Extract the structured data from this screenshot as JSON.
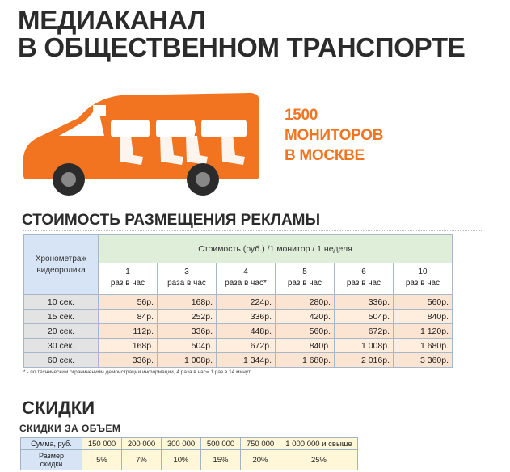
{
  "title_lines": [
    "МЕДИАКАНАЛ",
    "В ОБЩЕСТВЕННОМ ТРАНСПОРТЕ"
  ],
  "monitors_lines": [
    "1500",
    "МОНИТОРОВ",
    "В МОСКВЕ"
  ],
  "price_section": {
    "heading": "СТОИМОСТЬ РАЗМЕЩЕНИЯ РЕКЛАМЫ",
    "duration_header": "Хронометраж видеоролика",
    "cost_header": "Стоимость (руб.) /1 монитор / 1 неделя",
    "rates": [
      {
        "num": "1",
        "unit": "раз в час"
      },
      {
        "num": "3",
        "unit": "раза в час"
      },
      {
        "num": "4",
        "unit": "раза в час*"
      },
      {
        "num": "5",
        "unit": "раз в час"
      },
      {
        "num": "6",
        "unit": "раз в час"
      },
      {
        "num": "10",
        "unit": "раз в час"
      }
    ],
    "rows": [
      {
        "duration": "10 сек.",
        "prices": [
          "56р.",
          "168р.",
          "224р.",
          "280р.",
          "336р.",
          "560р."
        ]
      },
      {
        "duration": "15 сек.",
        "prices": [
          "84р.",
          "252р.",
          "336р.",
          "420р.",
          "504р.",
          "840р."
        ]
      },
      {
        "duration": "20 сек.",
        "prices": [
          "112р.",
          "336р.",
          "448р.",
          "560р.",
          "672р.",
          "1 120р."
        ]
      },
      {
        "duration": "30 сек.",
        "prices": [
          "168р.",
          "504р.",
          "672р.",
          "840р.",
          "1 008р.",
          "1 680р."
        ]
      },
      {
        "duration": "60 сек.",
        "prices": [
          "336р.",
          "1 008р.",
          "1 344р.",
          "1 680р.",
          "2 016р.",
          "3 360р."
        ]
      }
    ],
    "footnote": "* - по техническим ограничениям демонстрации информации, 4 раза в час= 1 раз в 14 минут"
  },
  "discount_section": {
    "heading": "СКИДКИ",
    "subheading": "СКИДКИ ЗА ОБЪЕМ",
    "sum_label": "Сумма, руб.",
    "size_label_line1": "Размер",
    "size_label_line2": "скидки",
    "sums": [
      "150 000",
      "200 000",
      "300 000",
      "500 000",
      "750 000",
      "1 000 000 и свыше"
    ],
    "discounts": [
      "5%",
      "7%",
      "10%",
      "15%",
      "20%",
      "25%"
    ]
  },
  "colors": {
    "accent": "#f27420",
    "header_blue": "#d6e4f5",
    "header_green": "#dfeed8",
    "cell_peach": "#fce4d3"
  }
}
